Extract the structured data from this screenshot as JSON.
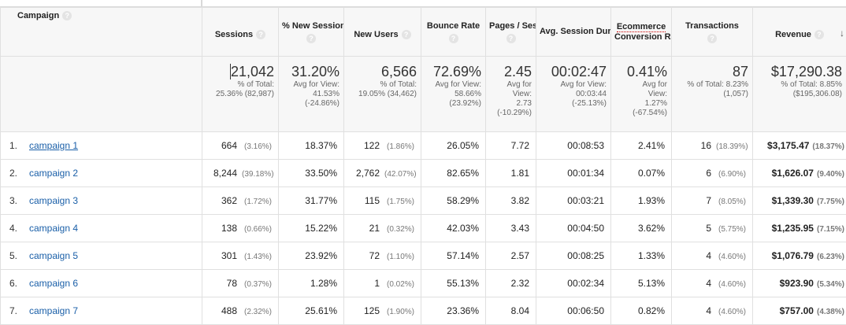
{
  "headers": {
    "campaign": "Campaign",
    "sessions": "Sessions",
    "new_sessions": "% New Sessions",
    "new_users": "New Users",
    "bounce_rate": "Bounce Rate",
    "pages_session": "Pages / Session",
    "avg_duration": "Avg. Session Duration",
    "ecom_conv_a": "Ecommerce",
    "ecom_conv_b": "Conversion Rate",
    "transactions": "Transactions",
    "revenue": "Revenue",
    "help_glyph": "?",
    "sort_glyph": "↓"
  },
  "totals": {
    "sessions": {
      "value": "21,042",
      "l1": "% of Total:",
      "l2": "25.36% (82,987)"
    },
    "new_sessions": {
      "value": "31.20%",
      "l1": "Avg for View:",
      "l2": "41.53%",
      "l3": "(-24.86%)"
    },
    "new_users": {
      "value": "6,566",
      "l1": "% of Total:",
      "l2": "19.05% (34,462)"
    },
    "bounce_rate": {
      "value": "72.69%",
      "l1": "Avg for View:",
      "l2": "58.66%",
      "l3": "(23.92%)"
    },
    "pages_session": {
      "value": "2.45",
      "l1": "Avg for",
      "l2": "View:",
      "l3": "2.73",
      "l4": "(-10.29%)"
    },
    "avg_duration": {
      "value": "00:02:47",
      "l1": "Avg for View:",
      "l2": "00:03:44",
      "l3": "(-25.13%)"
    },
    "ecom_conv": {
      "value": "0.41%",
      "l1": "Avg for",
      "l2": "View:",
      "l3": "1.27%",
      "l4": "(-67.54%)"
    },
    "transactions": {
      "value": "87",
      "l1": "% of Total: 8.23%",
      "l2": "(1,057)"
    },
    "revenue": {
      "value": "$17,290.38",
      "l1": "% of Total: 8.85%",
      "l2": "($195,306.08)"
    }
  },
  "rows": [
    {
      "num": "1.",
      "name": "campaign 1",
      "sessions": "664",
      "sessions_pct": "(3.16%)",
      "new_sessions": "18.37%",
      "new_users": "122",
      "new_users_pct": "(1.86%)",
      "bounce": "26.05%",
      "pages": "7.72",
      "duration": "00:08:53",
      "conv": "2.41%",
      "trans": "16",
      "trans_pct": "(18.39%)",
      "revenue": "$3,175.47",
      "revenue_pct": "(18.37%)"
    },
    {
      "num": "2.",
      "name": "campaign 2",
      "sessions": "8,244",
      "sessions_pct": "(39.18%)",
      "new_sessions": "33.50%",
      "new_users": "2,762",
      "new_users_pct": "(42.07%)",
      "bounce": "82.65%",
      "pages": "1.81",
      "duration": "00:01:34",
      "conv": "0.07%",
      "trans": "6",
      "trans_pct": "(6.90%)",
      "revenue": "$1,626.07",
      "revenue_pct": "(9.40%)"
    },
    {
      "num": "3.",
      "name": "campaign 3",
      "sessions": "362",
      "sessions_pct": "(1.72%)",
      "new_sessions": "31.77%",
      "new_users": "115",
      "new_users_pct": "(1.75%)",
      "bounce": "58.29%",
      "pages": "3.82",
      "duration": "00:03:21",
      "conv": "1.93%",
      "trans": "7",
      "trans_pct": "(8.05%)",
      "revenue": "$1,339.30",
      "revenue_pct": "(7.75%)"
    },
    {
      "num": "4.",
      "name": "campaign 4",
      "sessions": "138",
      "sessions_pct": "(0.66%)",
      "new_sessions": "15.22%",
      "new_users": "21",
      "new_users_pct": "(0.32%)",
      "bounce": "42.03%",
      "pages": "3.43",
      "duration": "00:04:50",
      "conv": "3.62%",
      "trans": "5",
      "trans_pct": "(5.75%)",
      "revenue": "$1,235.95",
      "revenue_pct": "(7.15%)"
    },
    {
      "num": "5.",
      "name": "campaign 5",
      "sessions": "301",
      "sessions_pct": "(1.43%)",
      "new_sessions": "23.92%",
      "new_users": "72",
      "new_users_pct": "(1.10%)",
      "bounce": "57.14%",
      "pages": "2.57",
      "duration": "00:08:25",
      "conv": "1.33%",
      "trans": "4",
      "trans_pct": "(4.60%)",
      "revenue": "$1,076.79",
      "revenue_pct": "(6.23%)"
    },
    {
      "num": "6.",
      "name": "campaign 6",
      "sessions": "78",
      "sessions_pct": "(0.37%)",
      "new_sessions": "1.28%",
      "new_users": "1",
      "new_users_pct": "(0.02%)",
      "bounce": "55.13%",
      "pages": "2.32",
      "duration": "00:02:34",
      "conv": "5.13%",
      "trans": "4",
      "trans_pct": "(4.60%)",
      "revenue": "$923.90",
      "revenue_pct": "(5.34%)"
    },
    {
      "num": "7.",
      "name": "campaign 7",
      "sessions": "488",
      "sessions_pct": "(2.32%)",
      "new_sessions": "25.61%",
      "new_users": "125",
      "new_users_pct": "(1.90%)",
      "bounce": "23.36%",
      "pages": "8.04",
      "duration": "00:06:50",
      "conv": "0.82%",
      "trans": "4",
      "trans_pct": "(4.60%)",
      "revenue": "$757.00",
      "revenue_pct": "(4.38%)"
    }
  ]
}
